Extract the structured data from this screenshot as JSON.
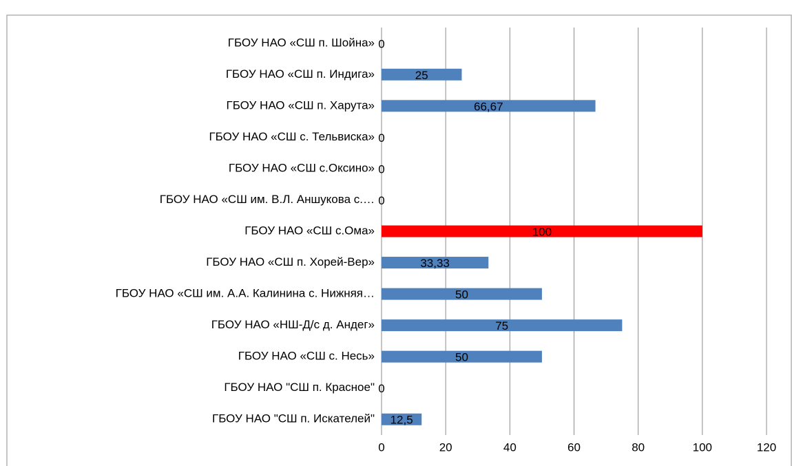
{
  "chart_data": {
    "type": "barh",
    "categories": [
      "ГБОУ НАО «СШ п. Шойна»",
      "ГБОУ НАО «СШ п. Индига»",
      "ГБОУ НАО «СШ п. Харута»",
      "ГБОУ НАО «СШ с. Тельвиска»",
      "ГБОУ НАО «СШ с.Оксино»",
      "ГБОУ НАО «СШ им. В.Л. Аншукова с.…",
      "ГБОУ НАО «СШ с.Ома»",
      "ГБОУ НАО «СШ п. Хорей-Вер»",
      "ГБОУ НАО «СШ им. А.А. Калинина с. Нижняя…",
      "ГБОУ НАО «НШ-Д/с д. Андег»",
      "ГБОУ НАО «СШ с. Несь»",
      "ГБОУ НАО \"СШ п. Красное\"",
      "ГБОУ НАО \"СШ п. Искателей\""
    ],
    "values": [
      0,
      25,
      66.67,
      0,
      0,
      0,
      100,
      33.33,
      50,
      75,
      50,
      0,
      12.5
    ],
    "value_labels": [
      "0",
      "25",
      "66,67",
      "0",
      "0",
      "0",
      "100",
      "33,33",
      "50",
      "75",
      "50",
      "0",
      "12,5"
    ],
    "colors": [
      "#4f81bd",
      "#4f81bd",
      "#4f81bd",
      "#4f81bd",
      "#4f81bd",
      "#4f81bd",
      "#ff0000",
      "#4f81bd",
      "#4f81bd",
      "#4f81bd",
      "#4f81bd",
      "#4f81bd",
      "#4f81bd"
    ],
    "xlim": [
      0,
      120
    ],
    "xticks": [
      0,
      20,
      40,
      60,
      80,
      100,
      120
    ],
    "grid": true
  }
}
